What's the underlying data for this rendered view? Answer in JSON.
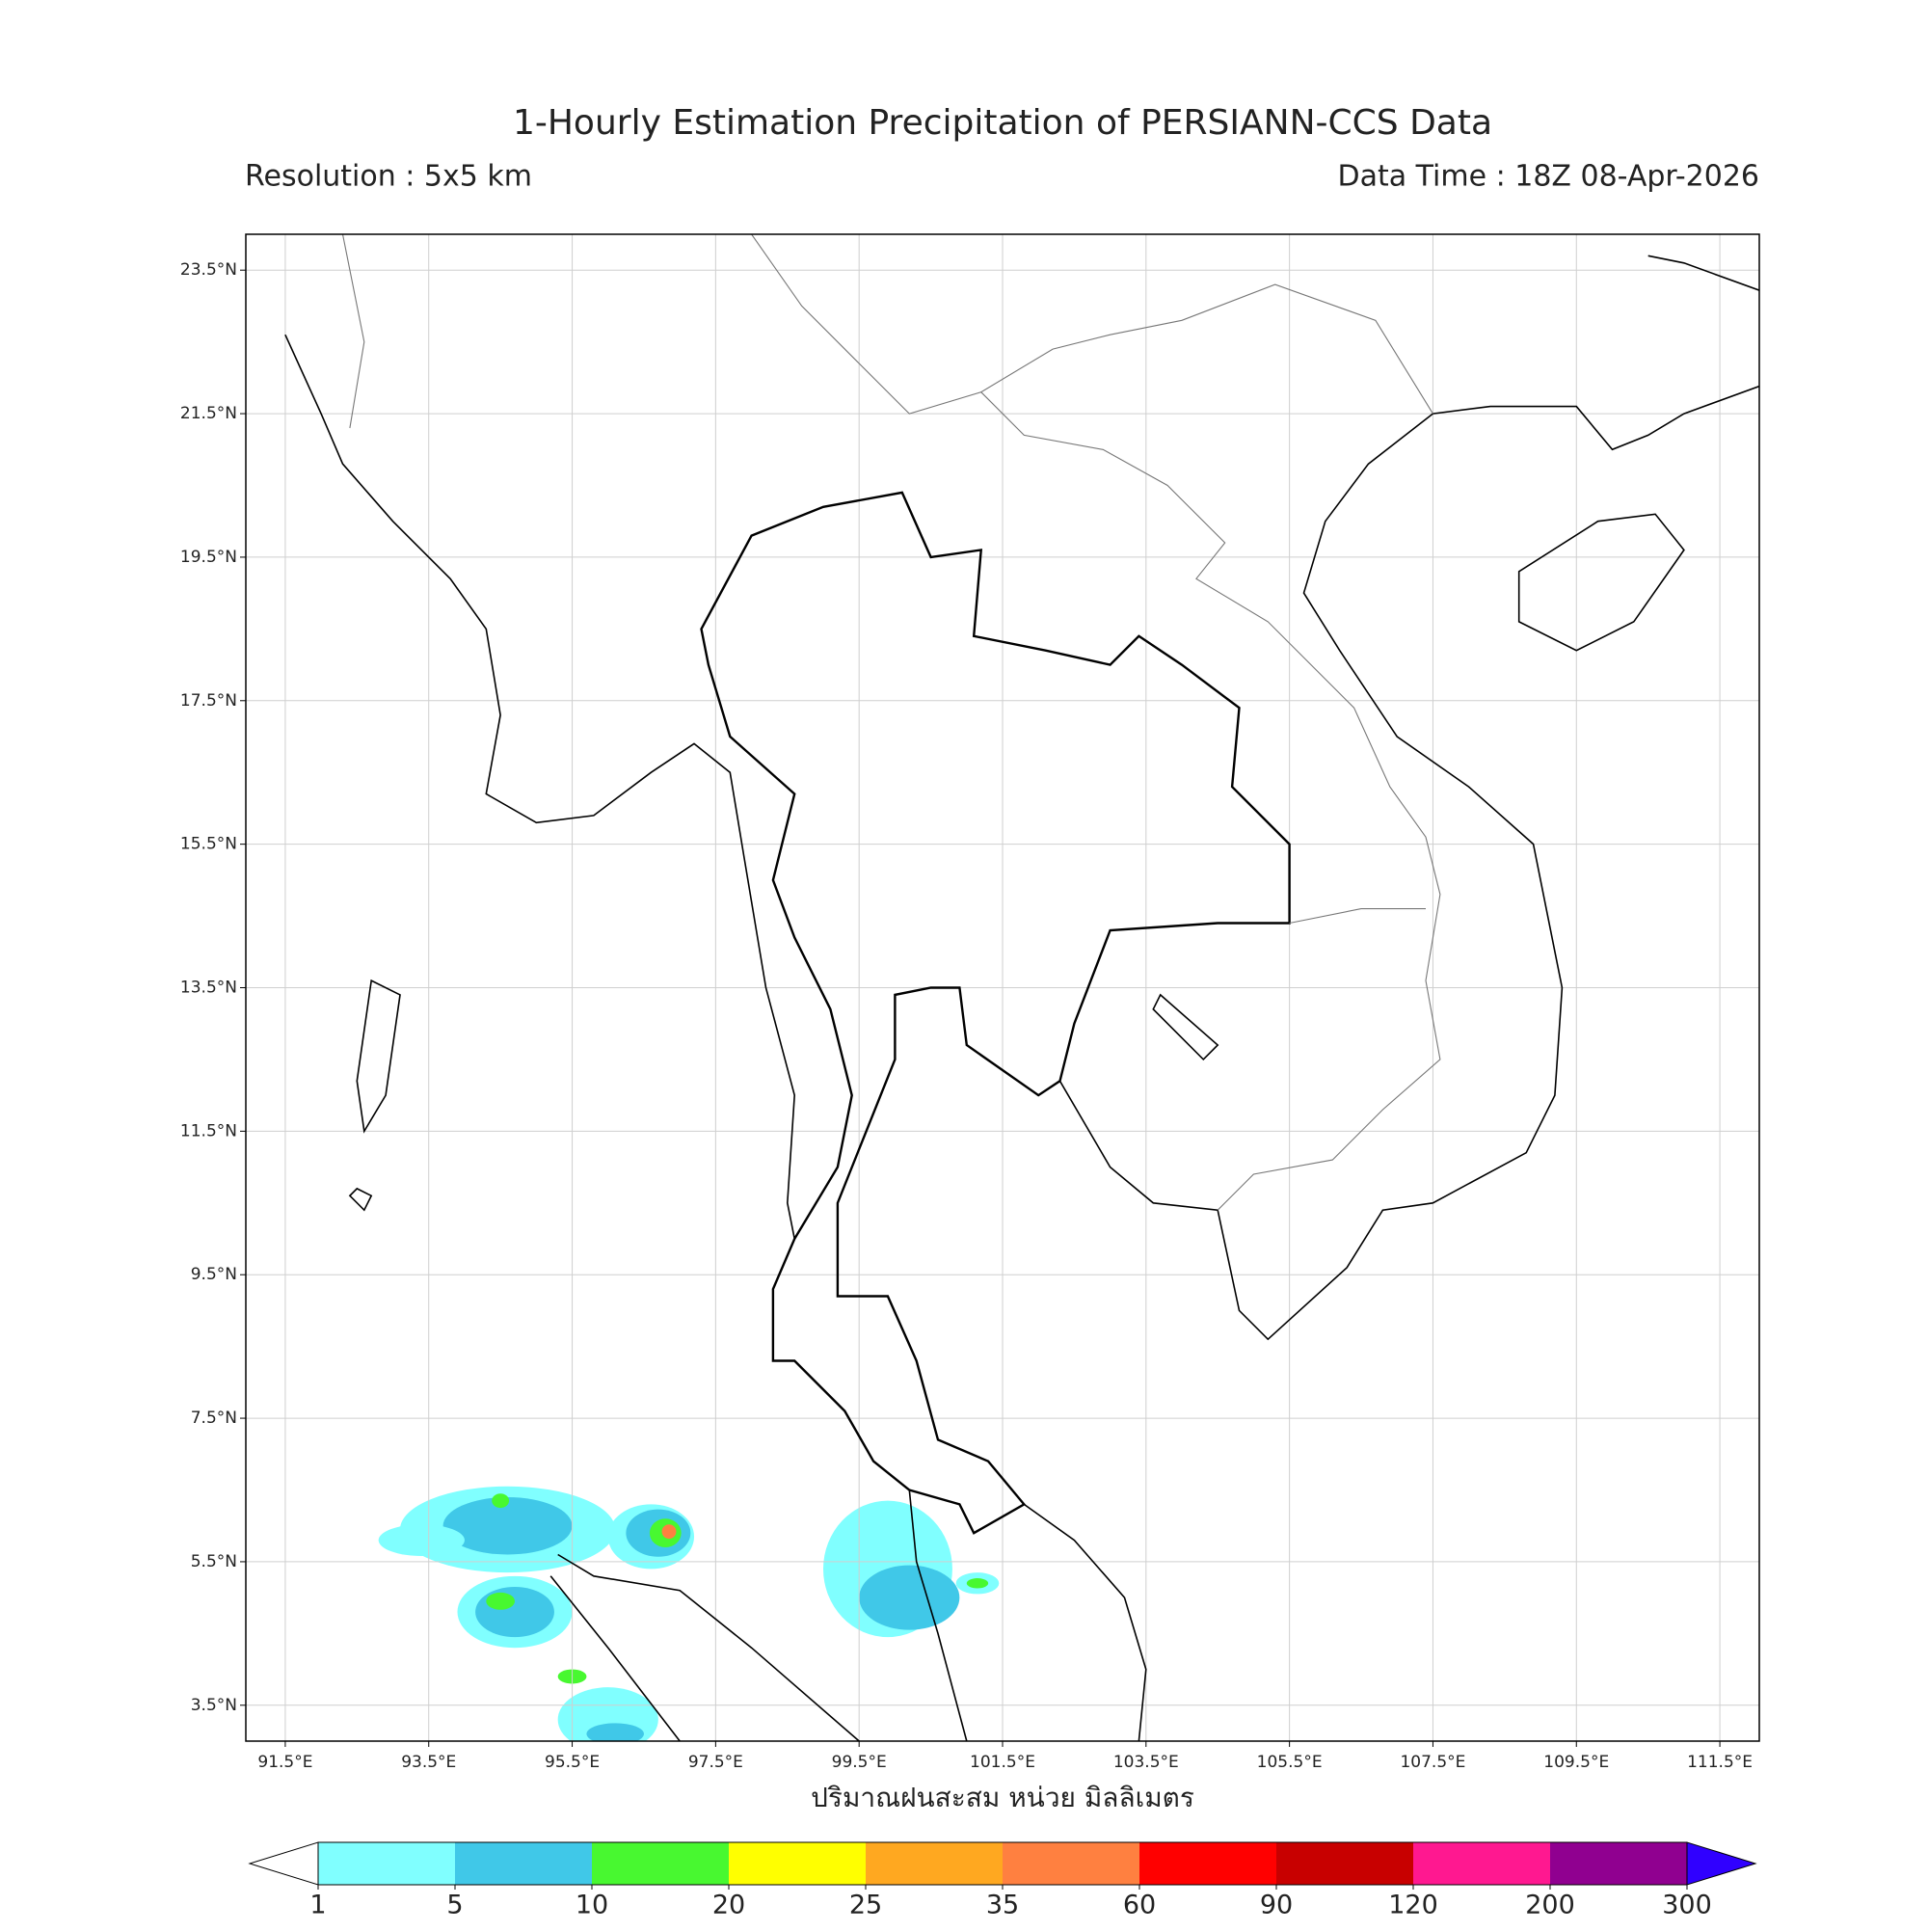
{
  "chart_data": {
    "type": "map",
    "title": "1-Hourly Estimation Precipitation of PERSIANN-CCS Data",
    "subtitle": "Resolution : 5x5 km",
    "data_time": "Data Time : 18Z 08-Apr-2026",
    "xlabel": "ปริมาณฝนสะสม หน่วย มิลลิเมตร",
    "xlim": [
      90.95,
      112.05
    ],
    "ylim": [
      3.0,
      24.0
    ],
    "xticks": [
      {
        "value": 91.5,
        "label": "91.5°E"
      },
      {
        "value": 93.5,
        "label": "93.5°E"
      },
      {
        "value": 95.5,
        "label": "95.5°E"
      },
      {
        "value": 97.5,
        "label": "97.5°E"
      },
      {
        "value": 99.5,
        "label": "99.5°E"
      },
      {
        "value": 101.5,
        "label": "101.5°E"
      },
      {
        "value": 103.5,
        "label": "103.5°E"
      },
      {
        "value": 105.5,
        "label": "105.5°E"
      },
      {
        "value": 107.5,
        "label": "107.5°E"
      },
      {
        "value": 109.5,
        "label": "109.5°E"
      },
      {
        "value": 111.5,
        "label": "111.5°E"
      }
    ],
    "yticks": [
      {
        "value": 23.5,
        "label": "23.5°N"
      },
      {
        "value": 21.5,
        "label": "21.5°N"
      },
      {
        "value": 19.5,
        "label": "19.5°N"
      },
      {
        "value": 17.5,
        "label": "17.5°N"
      },
      {
        "value": 15.5,
        "label": "15.5°N"
      },
      {
        "value": 13.5,
        "label": "13.5°N"
      },
      {
        "value": 11.5,
        "label": "11.5°N"
      },
      {
        "value": 9.5,
        "label": "9.5°N"
      },
      {
        "value": 7.5,
        "label": "7.5°N"
      },
      {
        "value": 5.5,
        "label": "5.5°N"
      },
      {
        "value": 3.5,
        "label": "3.5°N"
      }
    ],
    "grid": true,
    "colorbar": {
      "levels": [
        1,
        5,
        10,
        20,
        25,
        35,
        60,
        90,
        120,
        200,
        300
      ],
      "colors": [
        "#80ffff",
        "#40c8e8",
        "#48f830",
        "#ffff00",
        "#ffa820",
        "#ff8040",
        "#ff0000",
        "#c80000",
        "#ff1890",
        "#900090"
      ],
      "under_color": "#ffffff",
      "over_color": "#3000ff"
    }
  }
}
